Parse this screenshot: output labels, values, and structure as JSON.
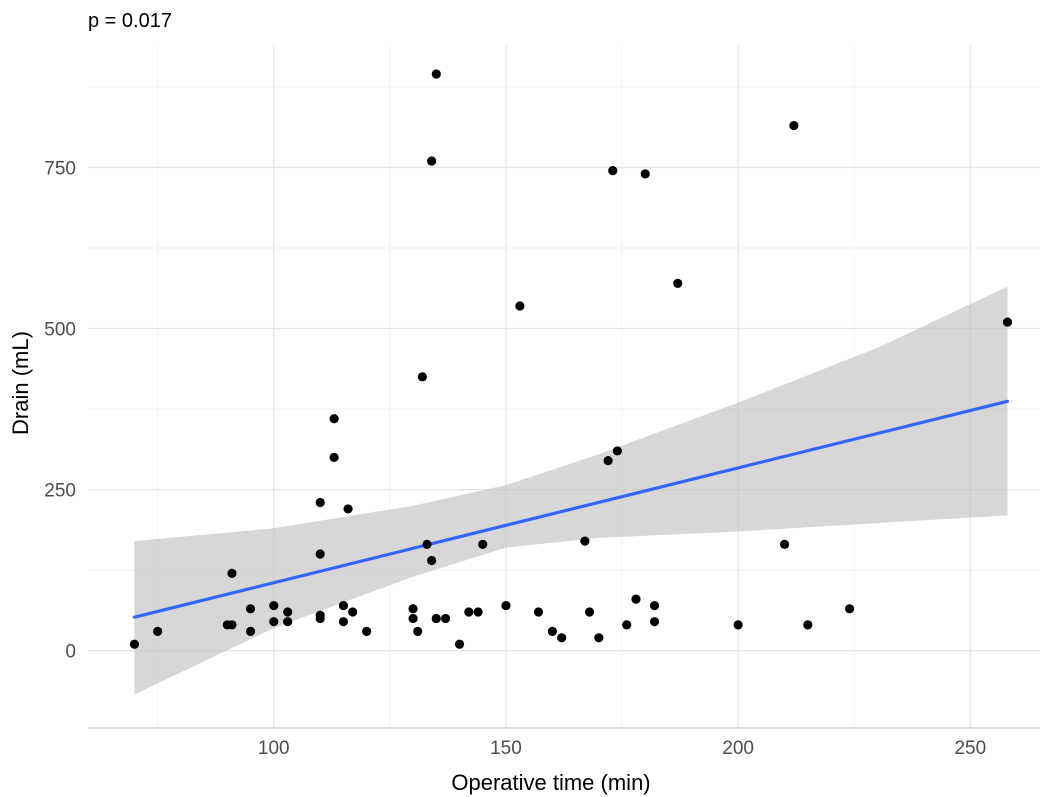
{
  "chart_data": {
    "type": "scatter",
    "subtitle": "p = 0.017",
    "xlabel": "Operative time (min)",
    "ylabel": "Drain (mL)",
    "xlim": [
      60,
      265
    ],
    "ylim": [
      -120,
      940
    ],
    "x_ticks": [
      100,
      150,
      200,
      250
    ],
    "y_ticks": [
      0,
      250,
      500,
      750
    ],
    "grid": true,
    "colors": {
      "points": "#000000",
      "fit_line": "#3366ff",
      "ribbon": "#bebebe",
      "grid_major": "#e6e6e6",
      "grid_minor": "#f2f2f2",
      "axis_line": "#bdbdbd"
    },
    "points": [
      {
        "x": 70,
        "y": 10
      },
      {
        "x": 75,
        "y": 30
      },
      {
        "x": 90,
        "y": 40
      },
      {
        "x": 91,
        "y": 40
      },
      {
        "x": 91,
        "y": 120
      },
      {
        "x": 95,
        "y": 65
      },
      {
        "x": 95,
        "y": 30
      },
      {
        "x": 100,
        "y": 70
      },
      {
        "x": 100,
        "y": 45
      },
      {
        "x": 103,
        "y": 60
      },
      {
        "x": 103,
        "y": 45
      },
      {
        "x": 110,
        "y": 150
      },
      {
        "x": 110,
        "y": 230
      },
      {
        "x": 110,
        "y": 55
      },
      {
        "x": 110,
        "y": 50
      },
      {
        "x": 113,
        "y": 360
      },
      {
        "x": 113,
        "y": 300
      },
      {
        "x": 115,
        "y": 70
      },
      {
        "x": 115,
        "y": 45
      },
      {
        "x": 116,
        "y": 220
      },
      {
        "x": 117,
        "y": 60
      },
      {
        "x": 120,
        "y": 30
      },
      {
        "x": 130,
        "y": 65
      },
      {
        "x": 130,
        "y": 50
      },
      {
        "x": 131,
        "y": 30
      },
      {
        "x": 132,
        "y": 425
      },
      {
        "x": 133,
        "y": 165
      },
      {
        "x": 134,
        "y": 140
      },
      {
        "x": 134,
        "y": 760
      },
      {
        "x": 135,
        "y": 895
      },
      {
        "x": 135,
        "y": 50
      },
      {
        "x": 137,
        "y": 50
      },
      {
        "x": 140,
        "y": 10
      },
      {
        "x": 142,
        "y": 60
      },
      {
        "x": 144,
        "y": 60
      },
      {
        "x": 145,
        "y": 165
      },
      {
        "x": 150,
        "y": 70
      },
      {
        "x": 153,
        "y": 535
      },
      {
        "x": 157,
        "y": 60
      },
      {
        "x": 160,
        "y": 30
      },
      {
        "x": 162,
        "y": 20
      },
      {
        "x": 167,
        "y": 170
      },
      {
        "x": 168,
        "y": 60
      },
      {
        "x": 170,
        "y": 20
      },
      {
        "x": 172,
        "y": 295
      },
      {
        "x": 173,
        "y": 745
      },
      {
        "x": 174,
        "y": 310
      },
      {
        "x": 176,
        "y": 40
      },
      {
        "x": 178,
        "y": 80
      },
      {
        "x": 180,
        "y": 740
      },
      {
        "x": 182,
        "y": 70
      },
      {
        "x": 182,
        "y": 45
      },
      {
        "x": 187,
        "y": 570
      },
      {
        "x": 200,
        "y": 40
      },
      {
        "x": 210,
        "y": 165
      },
      {
        "x": 212,
        "y": 815
      },
      {
        "x": 215,
        "y": 40
      },
      {
        "x": 224,
        "y": 65
      },
      {
        "x": 258,
        "y": 510
      }
    ],
    "fit_line": [
      {
        "x": 70,
        "y": 52
      },
      {
        "x": 258,
        "y": 387
      }
    ],
    "confidence_band": [
      {
        "x": 70,
        "lower": -68,
        "upper": 170
      },
      {
        "x": 100,
        "lower": 35,
        "upper": 190
      },
      {
        "x": 130,
        "lower": 115,
        "upper": 225
      },
      {
        "x": 150,
        "lower": 160,
        "upper": 257
      },
      {
        "x": 170,
        "lower": 175,
        "upper": 305
      },
      {
        "x": 200,
        "lower": 185,
        "upper": 385
      },
      {
        "x": 230,
        "lower": 198,
        "upper": 470
      },
      {
        "x": 258,
        "lower": 210,
        "upper": 565
      }
    ]
  }
}
